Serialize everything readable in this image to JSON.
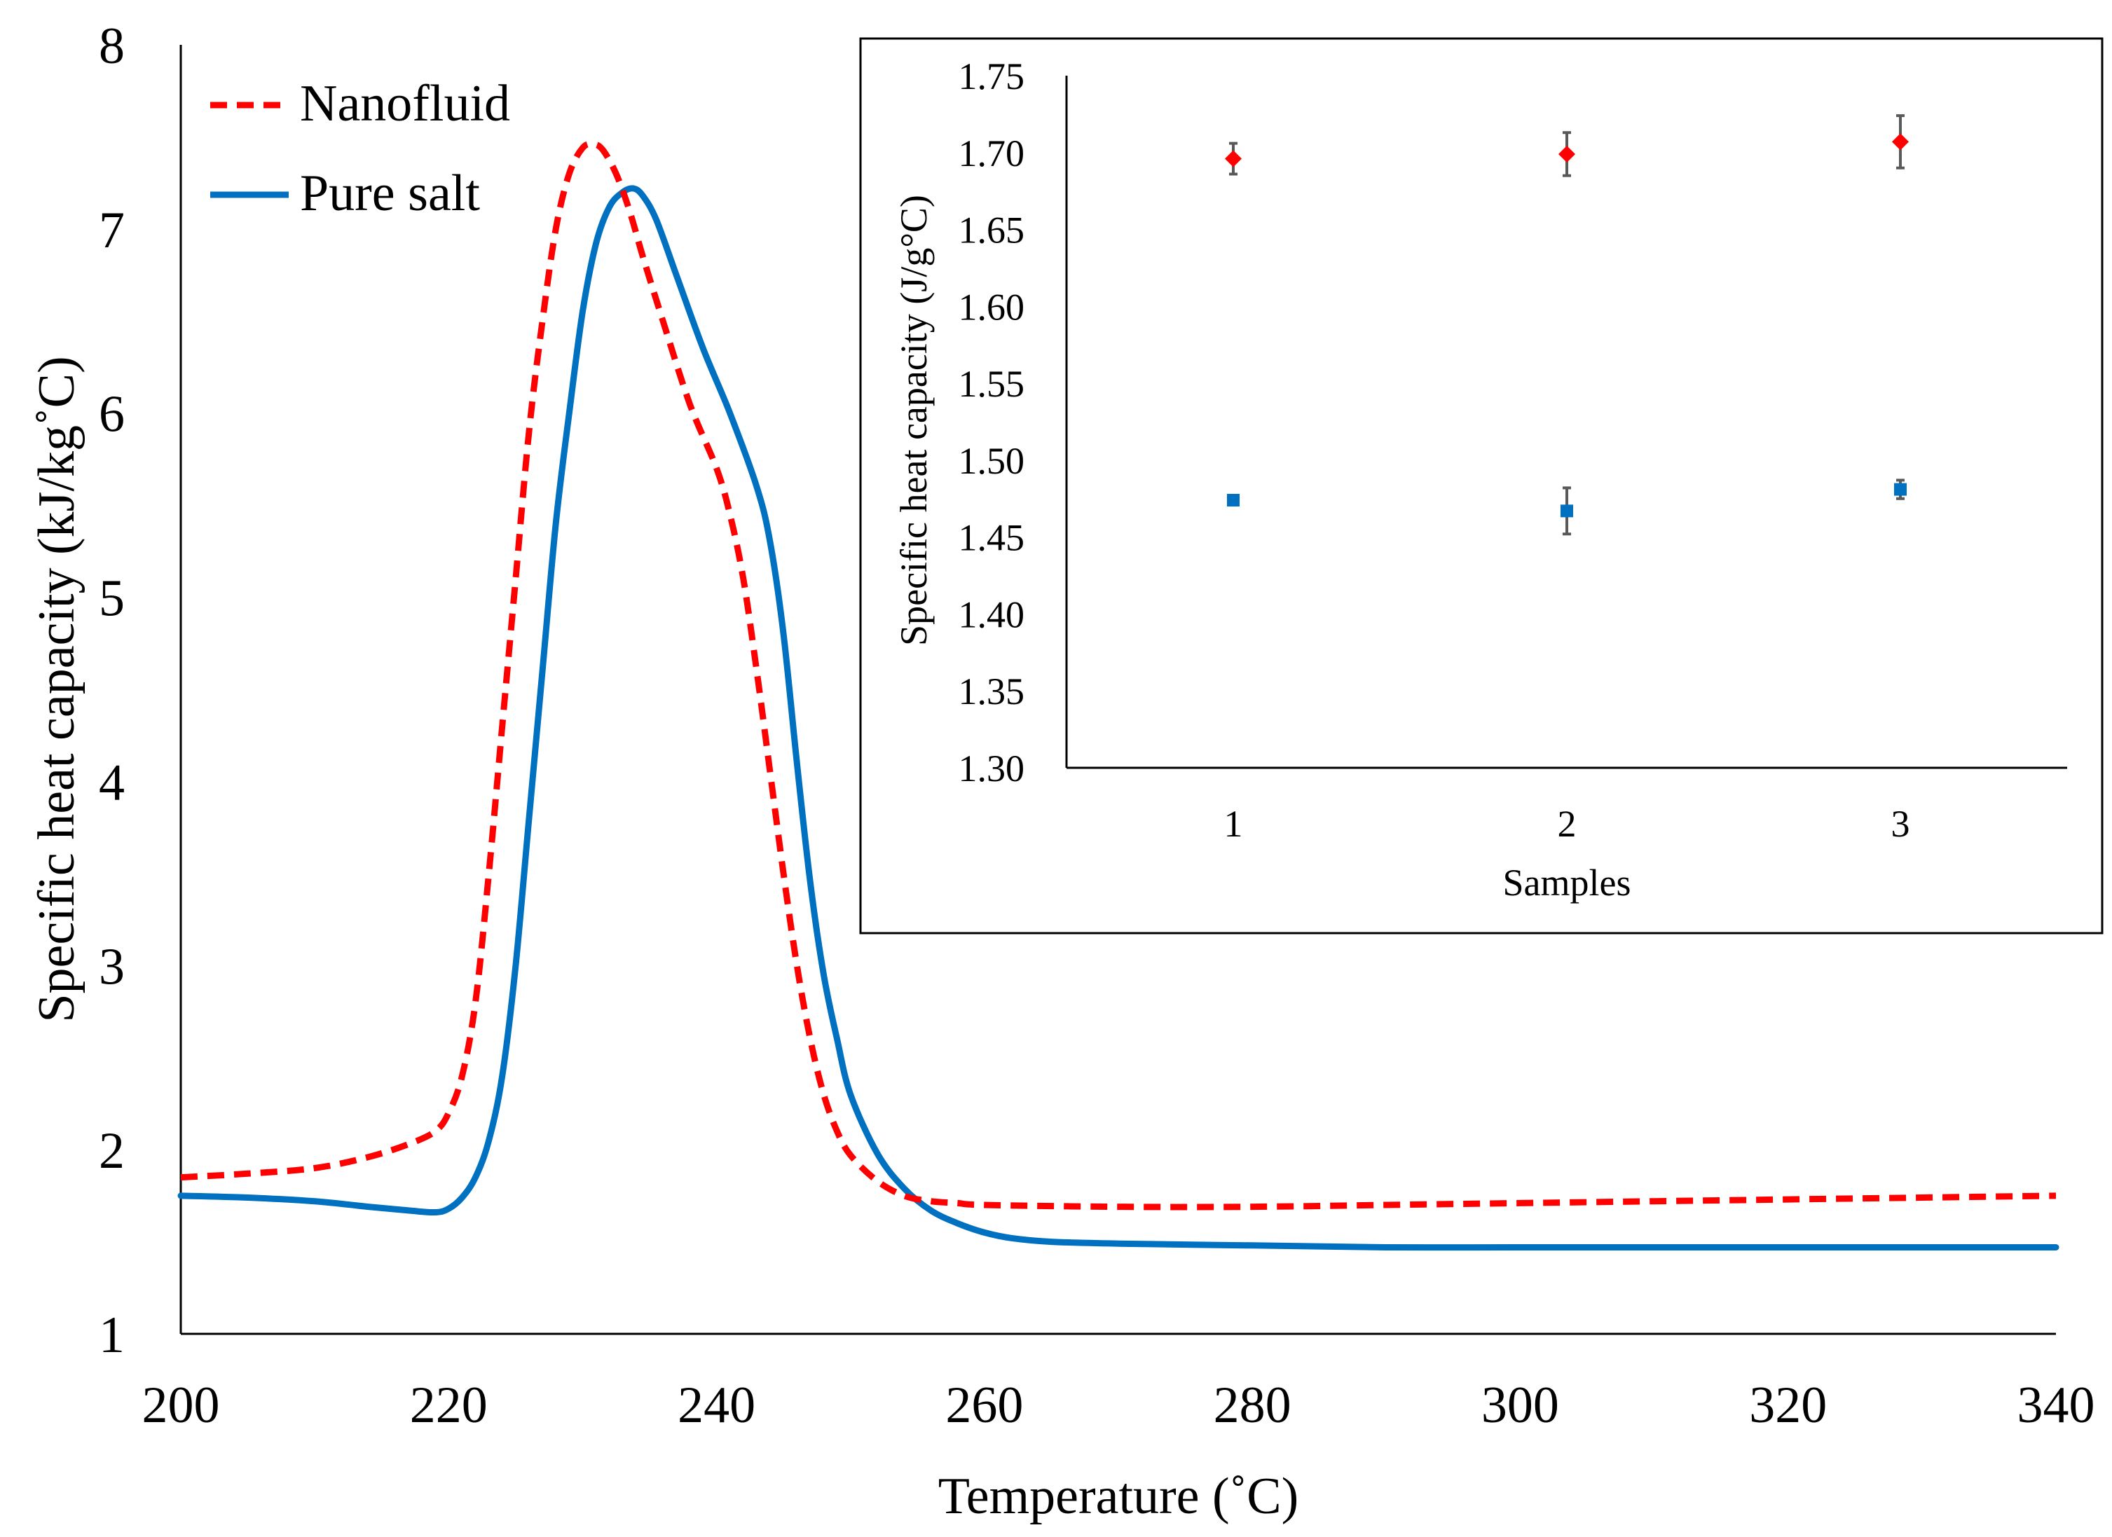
{
  "colors": {
    "nanofluid": "#ff0000",
    "pure_salt": "#0070c0",
    "axis": "#000000",
    "error_bar": "#595959"
  },
  "chart_data": [
    {
      "type": "line",
      "title": "",
      "xlabel": "Temperature (˚C)",
      "ylabel": "Specific heat capacity (kJ/kg˚C)",
      "xlim": [
        200,
        340
      ],
      "ylim": [
        1,
        8
      ],
      "x_ticks": [
        200,
        220,
        240,
        260,
        280,
        300,
        320,
        340
      ],
      "y_ticks": [
        1,
        2,
        3,
        4,
        5,
        6,
        7,
        8
      ],
      "x_tick_labels": [
        "200",
        "220",
        "240",
        "260",
        "280",
        "300",
        "320",
        "340"
      ],
      "y_tick_labels": [
        "1",
        "2",
        "3",
        "4",
        "5",
        "6",
        "7",
        "8"
      ],
      "grid": false,
      "legend": "top-left",
      "series": [
        {
          "name": "Nanofluid",
          "style": "dashed",
          "x": [
            200,
            205,
            210,
            214,
            217,
            219,
            220,
            221,
            222,
            223,
            224,
            225,
            226,
            227,
            228,
            229,
            230,
            230.8,
            231.5,
            232.5,
            233.5,
            234.5,
            236,
            238,
            240,
            241,
            242,
            243,
            244,
            245,
            246,
            247,
            248,
            249,
            250,
            252,
            254,
            256,
            258,
            260,
            270,
            280,
            290,
            300,
            310,
            320,
            330,
            340
          ],
          "values": [
            1.85,
            1.87,
            1.9,
            1.96,
            2.03,
            2.1,
            2.2,
            2.4,
            2.8,
            3.5,
            4.3,
            5.1,
            5.9,
            6.5,
            7.0,
            7.3,
            7.44,
            7.46,
            7.43,
            7.3,
            7.1,
            6.85,
            6.5,
            6.05,
            5.7,
            5.45,
            5.1,
            4.6,
            4.05,
            3.5,
            3.0,
            2.6,
            2.3,
            2.1,
            1.97,
            1.83,
            1.75,
            1.72,
            1.71,
            1.7,
            1.69,
            1.69,
            1.7,
            1.71,
            1.72,
            1.73,
            1.74,
            1.75
          ]
        },
        {
          "name": "Pure salt",
          "style": "solid",
          "x": [
            200,
            205,
            210,
            214,
            217,
            219,
            220,
            221,
            222,
            223,
            224,
            225,
            226,
            227,
            228,
            229,
            230,
            231,
            232,
            233,
            233.8,
            234.5,
            235.5,
            237,
            239,
            241,
            243,
            244,
            245,
            246,
            247,
            248,
            249,
            250,
            252,
            254,
            256,
            258,
            260,
            262,
            265,
            270,
            280,
            290,
            300,
            310,
            320,
            330,
            340
          ],
          "values": [
            1.75,
            1.74,
            1.72,
            1.69,
            1.67,
            1.66,
            1.68,
            1.74,
            1.85,
            2.05,
            2.4,
            3.0,
            3.8,
            4.6,
            5.4,
            6.0,
            6.55,
            6.92,
            7.12,
            7.2,
            7.22,
            7.18,
            7.05,
            6.75,
            6.35,
            6.0,
            5.6,
            5.3,
            4.8,
            4.1,
            3.45,
            2.95,
            2.6,
            2.3,
            1.98,
            1.79,
            1.67,
            1.6,
            1.55,
            1.52,
            1.5,
            1.49,
            1.48,
            1.47,
            1.47,
            1.47,
            1.47,
            1.47,
            1.47
          ]
        }
      ]
    },
    {
      "type": "scatter",
      "title": "",
      "xlabel": "Samples",
      "ylabel": "Specific heat capacity (J/g°C)",
      "categories": [
        "1",
        "2",
        "3"
      ],
      "ylim": [
        1.3,
        1.75
      ],
      "y_ticks": [
        1.3,
        1.35,
        1.4,
        1.45,
        1.5,
        1.55,
        1.6,
        1.65,
        1.7,
        1.75
      ],
      "y_tick_labels": [
        "1.30",
        "1.35",
        "1.40",
        "1.45",
        "1.50",
        "1.55",
        "1.60",
        "1.65",
        "1.70",
        "1.75"
      ],
      "grid": false,
      "series": [
        {
          "name": "Nanofluid",
          "marker": "diamond",
          "values": [
            1.696,
            1.699,
            1.707
          ],
          "errors": [
            0.01,
            0.014,
            0.017
          ]
        },
        {
          "name": "Pure salt",
          "marker": "square",
          "values": [
            1.474,
            1.467,
            1.481
          ],
          "errors": [
            0.002,
            0.015,
            0.006
          ]
        }
      ]
    }
  ]
}
